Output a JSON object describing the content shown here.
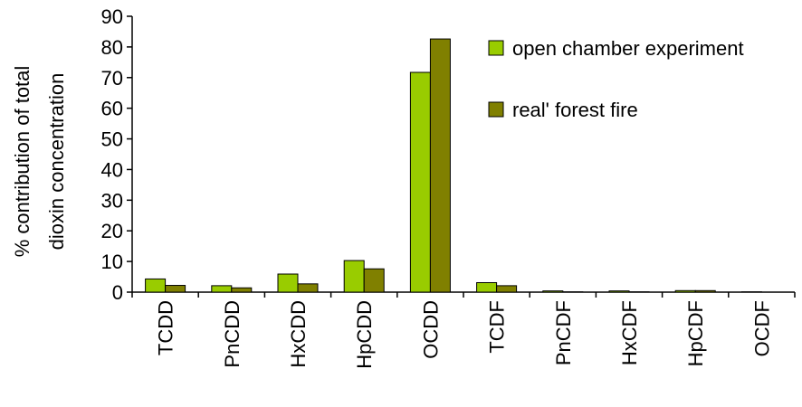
{
  "chart_data": {
    "type": "bar",
    "title": "",
    "ylabel_lines": [
      "% contribution of total",
      "dioxin concentration"
    ],
    "xlabel": "",
    "ylim": [
      0,
      90
    ],
    "yticks": [
      0,
      10,
      20,
      30,
      40,
      50,
      60,
      70,
      80,
      90
    ],
    "categories": [
      "TCDD",
      "PnCDD",
      "HxCDD",
      "HpCDD",
      "OCDD",
      "TCDF",
      "PnCDF",
      "HxCDF",
      "HpCDF",
      "OCDF"
    ],
    "series": [
      {
        "name": "open chamber experiment",
        "color": "#99cc00",
        "values": [
          4.3,
          2.1,
          5.9,
          10.3,
          71.7,
          3.1,
          0.4,
          0.4,
          0.5,
          0.1
        ]
      },
      {
        "name": "real' forest fire",
        "color": "#808000",
        "values": [
          2.2,
          1.4,
          2.7,
          7.6,
          82.6,
          2.1,
          0.1,
          0.1,
          0.5,
          0.0
        ]
      }
    ],
    "grid": false,
    "legend_position": "top-right"
  }
}
